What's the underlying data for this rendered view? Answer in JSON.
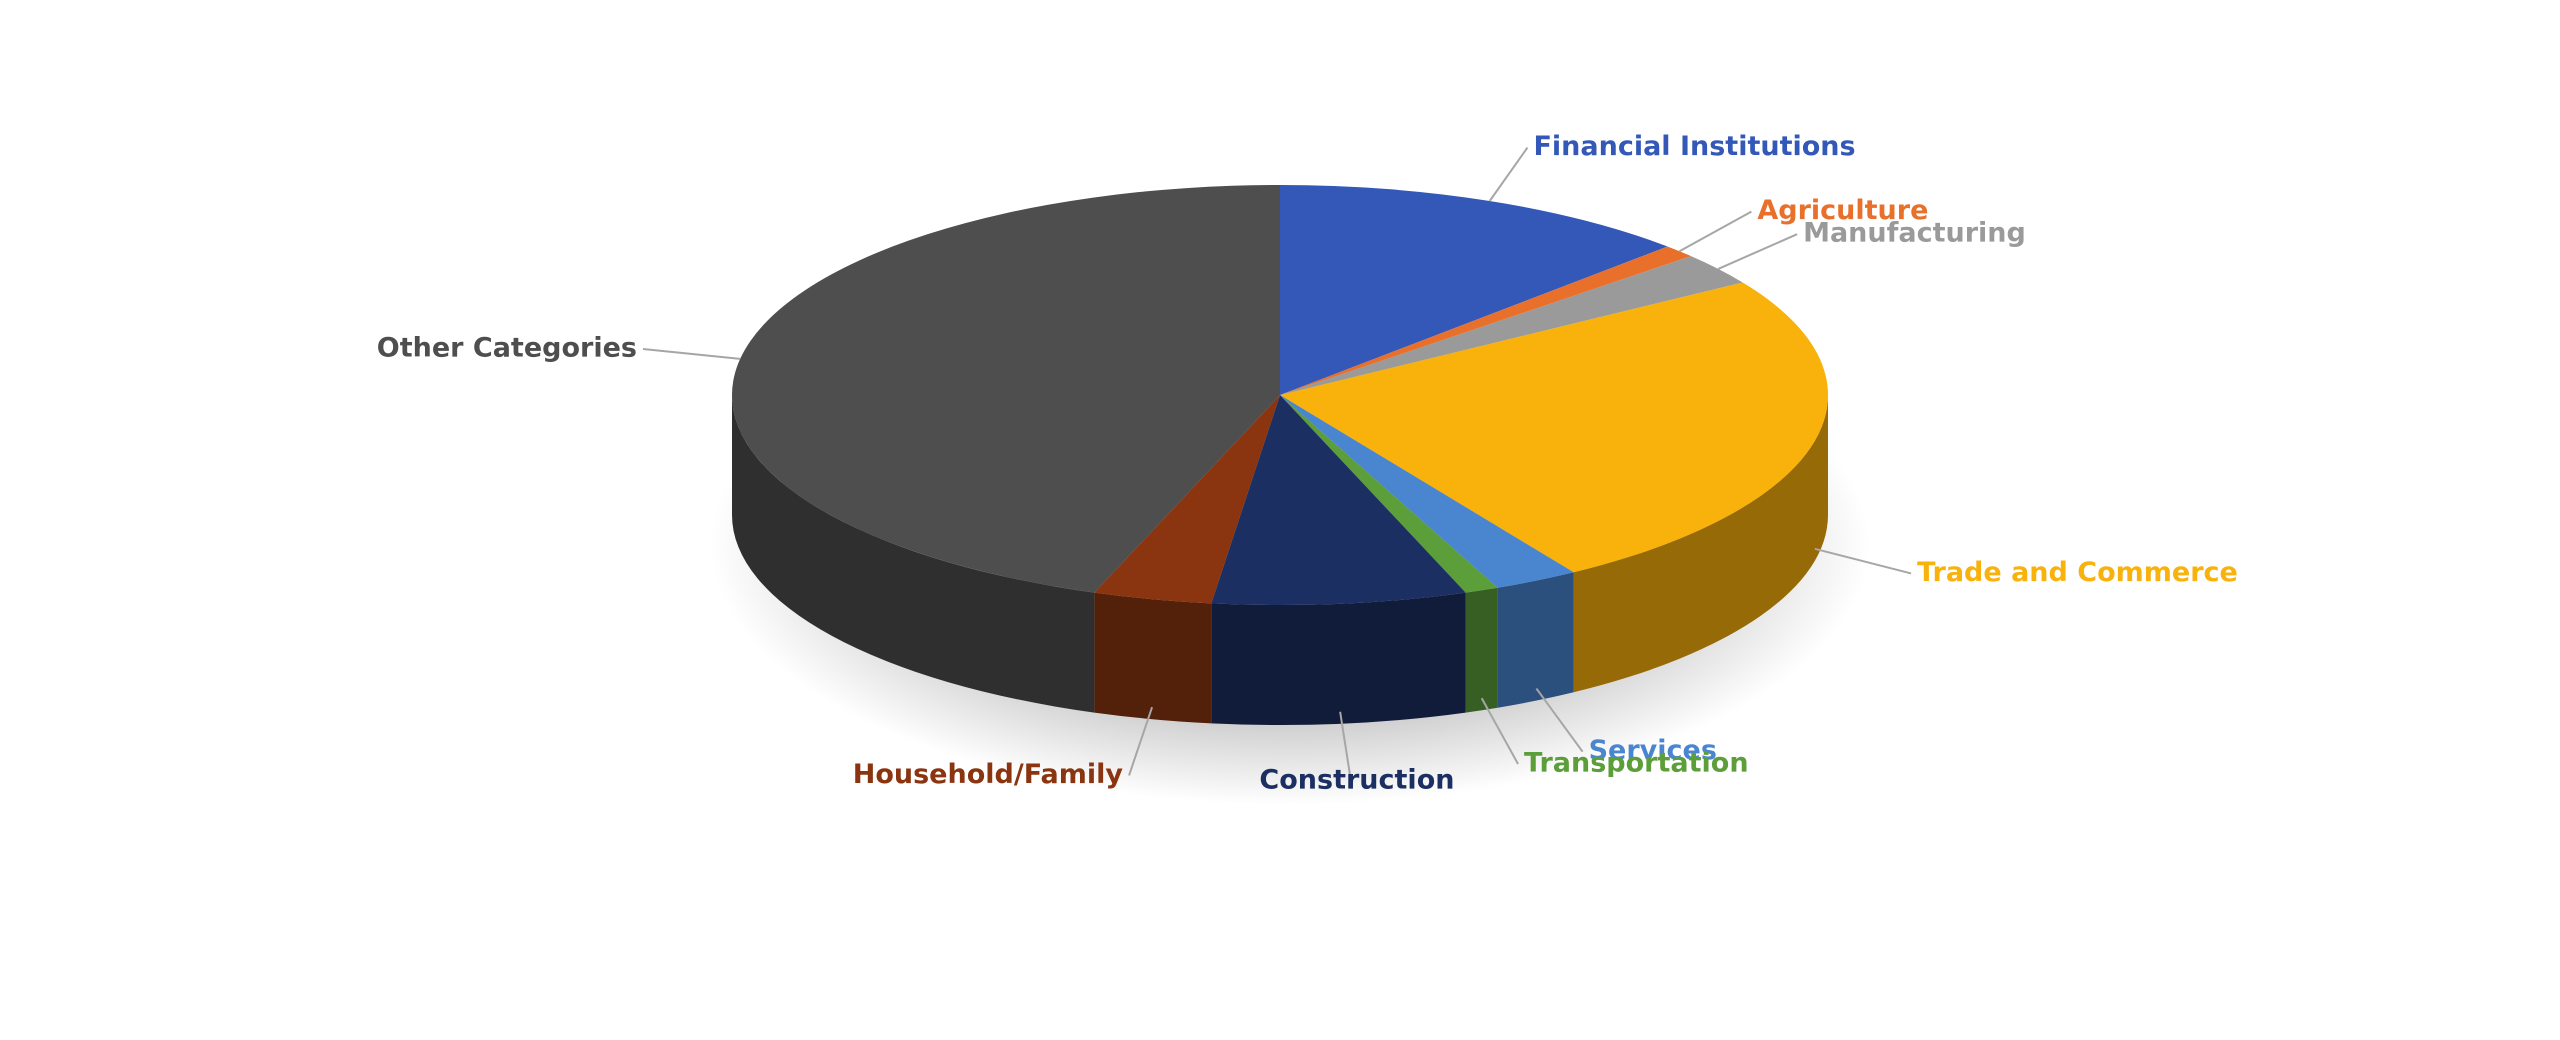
{
  "chart_data": {
    "type": "pie",
    "categories": [
      "Financial Institutions",
      "Agriculture",
      "Manufacturing",
      "Trade and Commerce",
      "Services",
      "Transportation",
      "Construction",
      "Household/Family",
      "Other Categories"
    ],
    "values": [
      12.5,
      1,
      2.5,
      25,
      2.5,
      1,
      7.5,
      3.5,
      44.5
    ],
    "colors": [
      "#3358b8",
      "#e8702a",
      "#9a9a9a",
      "#f9b10b",
      "#4a86d0",
      "#5c9e3a",
      "#1c2f63",
      "#8a3510",
      "#4e4e4e"
    ]
  }
}
